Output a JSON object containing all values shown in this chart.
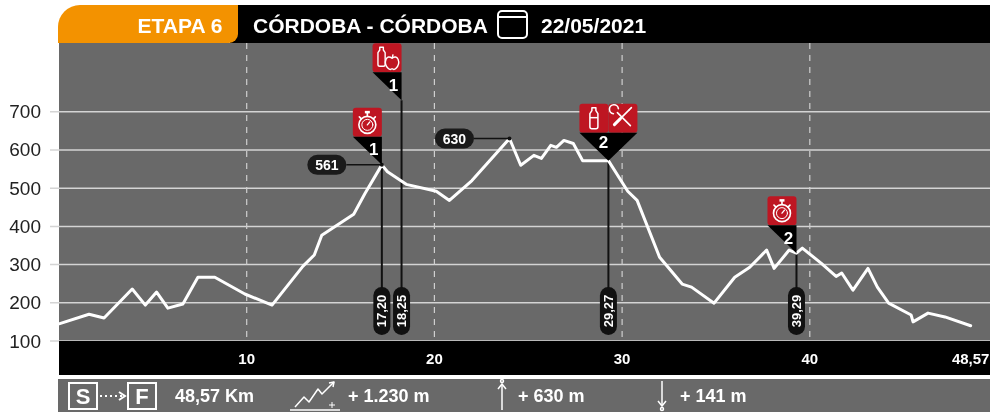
{
  "chart_data": {
    "type": "line",
    "title": "ETAPA 6",
    "subtitle": "CÓRDOBA - CÓRDOBA",
    "x": [
      0,
      1.6,
      2.4,
      3.9,
      4.6,
      5.2,
      5.8,
      6.6,
      7.4,
      8.3,
      9.9,
      11.35,
      13.0,
      13.6,
      14.0,
      15.7,
      16.3,
      17.2,
      17.5,
      18.5,
      20.1,
      20.8,
      22.0,
      24.0,
      24.6,
      25.3,
      25.7,
      26.2,
      26.5,
      26.9,
      27.4,
      27.9,
      29.27,
      30.3,
      30.8,
      32.0,
      33.2,
      33.7,
      34.9,
      36.0,
      36.8,
      37.7,
      38.1,
      38.9,
      39.29,
      39.6,
      40.6,
      41.4,
      41.7,
      42.3,
      43.1,
      43.6,
      44.2,
      45.4,
      45.5,
      46.3,
      47.2,
      48.57
    ],
    "values": [
      145,
      170,
      160,
      236,
      194,
      228,
      186,
      197,
      267,
      267,
      223,
      194,
      296,
      325,
      377,
      432,
      486,
      561,
      543,
      510,
      492,
      468,
      520,
      630,
      560,
      586,
      578,
      612,
      607,
      625,
      617,
      572,
      572,
      492,
      468,
      319,
      249,
      241,
      199,
      267,
      293,
      338,
      290,
      338,
      330,
      343,
      304,
      269,
      278,
      233,
      290,
      241,
      199,
      168,
      150,
      173,
      163,
      140
    ],
    "value_labels": [
      null,
      null,
      null,
      null,
      null,
      null,
      null,
      null,
      null,
      null,
      null,
      null,
      null,
      null,
      null,
      null,
      null,
      "561",
      null,
      null,
      null,
      null,
      null,
      "630",
      null,
      null,
      null,
      null,
      null,
      null,
      null,
      null,
      null,
      null,
      null,
      null,
      null,
      null,
      null,
      null,
      null,
      null,
      null,
      null,
      null,
      null,
      null,
      null,
      null,
      null,
      null,
      null,
      null,
      null,
      null,
      null,
      null,
      null
    ],
    "color": "#ffffff",
    "xlim": [
      0,
      49.6
    ],
    "xticks": [
      10,
      20,
      30,
      40,
      {
        "value": 48.57,
        "label": "48,57"
      }
    ],
    "ylim": [
      100,
      880
    ],
    "yticks": [
      100,
      200,
      300,
      400,
      500,
      600,
      700
    ],
    "grid": true,
    "ref_lines": [
      {
        "axis": "x",
        "value": 17.2,
        "label": "17,20",
        "color": "#111111"
      },
      {
        "axis": "x",
        "value": 18.25,
        "label": "18,25",
        "color": "#111111"
      },
      {
        "axis": "x",
        "value": 29.27,
        "label": "29,27",
        "color": "#111111"
      },
      {
        "axis": "x",
        "value": 39.29,
        "label": "39,29",
        "color": "#111111"
      }
    ],
    "annotations": [
      {
        "text": "1",
        "x": 17.2,
        "y": 561
      },
      {
        "text": "1",
        "x": 18.25,
        "y": 730
      },
      {
        "text": "2",
        "x": 29.27,
        "y": 572
      },
      {
        "text": "2",
        "x": 39.29,
        "y": 330
      },
      "22/05/2021",
      "S",
      "F",
      "48,57 Km",
      "+ 1.230 m",
      "+ 630 m",
      "+ 141 m"
    ]
  }
}
